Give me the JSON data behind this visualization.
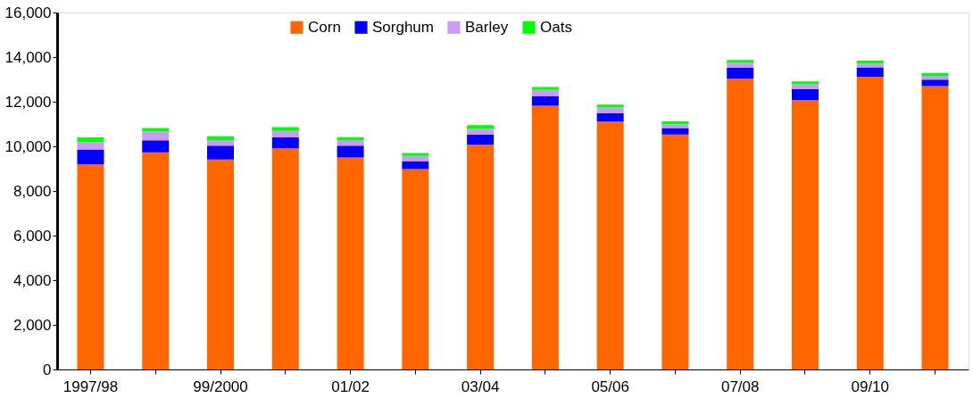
{
  "chart_data": {
    "type": "bar",
    "stacked": true,
    "categories": [
      "1997/98",
      null,
      "99/2000",
      null,
      "01/02",
      null,
      "03/04",
      null,
      "05/06",
      null,
      "07/08",
      null,
      "09/10",
      null
    ],
    "series": [
      {
        "name": "Corn",
        "color": "#ff6600",
        "values": [
          9190,
          9730,
          9410,
          9910,
          9500,
          8980,
          10070,
          11820,
          11110,
          10530,
          13030,
          12070,
          13120,
          12700
        ]
      },
      {
        "name": "Sorghum",
        "color": "#0000ff",
        "values": [
          670,
          540,
          620,
          490,
          530,
          340,
          460,
          420,
          380,
          290,
          500,
          500,
          420,
          290
        ]
      },
      {
        "name": "Barley",
        "color": "#cc99ff",
        "values": [
          330,
          390,
          250,
          290,
          250,
          250,
          250,
          290,
          250,
          170,
          210,
          210,
          170,
          170
        ]
      },
      {
        "name": "Oats",
        "color": "#00ff00",
        "values": [
          210,
          160,
          170,
          170,
          130,
          130,
          170,
          130,
          130,
          130,
          130,
          130,
          130,
          130
        ]
      }
    ],
    "ylim": [
      0,
      16000
    ],
    "yticks": [
      0,
      {
        "value": 2000,
        "label": "2,000"
      },
      {
        "value": 4000,
        "label": "4,000"
      },
      {
        "value": 6000,
        "label": "6,000"
      },
      {
        "value": 8000,
        "label": "8,000"
      },
      {
        "value": 10000,
        "label": "10,000"
      },
      {
        "value": 12000,
        "label": "12,000"
      },
      {
        "value": 14000,
        "label": "14,000"
      },
      {
        "value": 16000,
        "label": "16,000"
      }
    ],
    "grid": false,
    "legend": "top"
  }
}
